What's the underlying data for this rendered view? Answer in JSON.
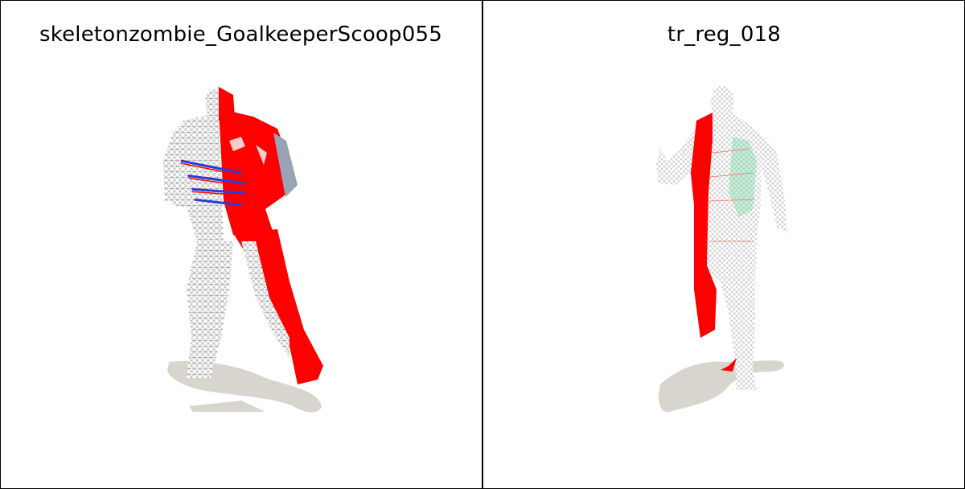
{
  "panels": [
    {
      "title": "skeletonzombie_GoalkeeperScoop055"
    },
    {
      "title": "tr_reg_018"
    }
  ],
  "colors": {
    "highlight": "#ff0000",
    "mesh": "#9a9a9a",
    "shadow": "#d8d5cf",
    "accent_blue": "#2b3bd6",
    "accent_green": "#7fd6a8"
  }
}
